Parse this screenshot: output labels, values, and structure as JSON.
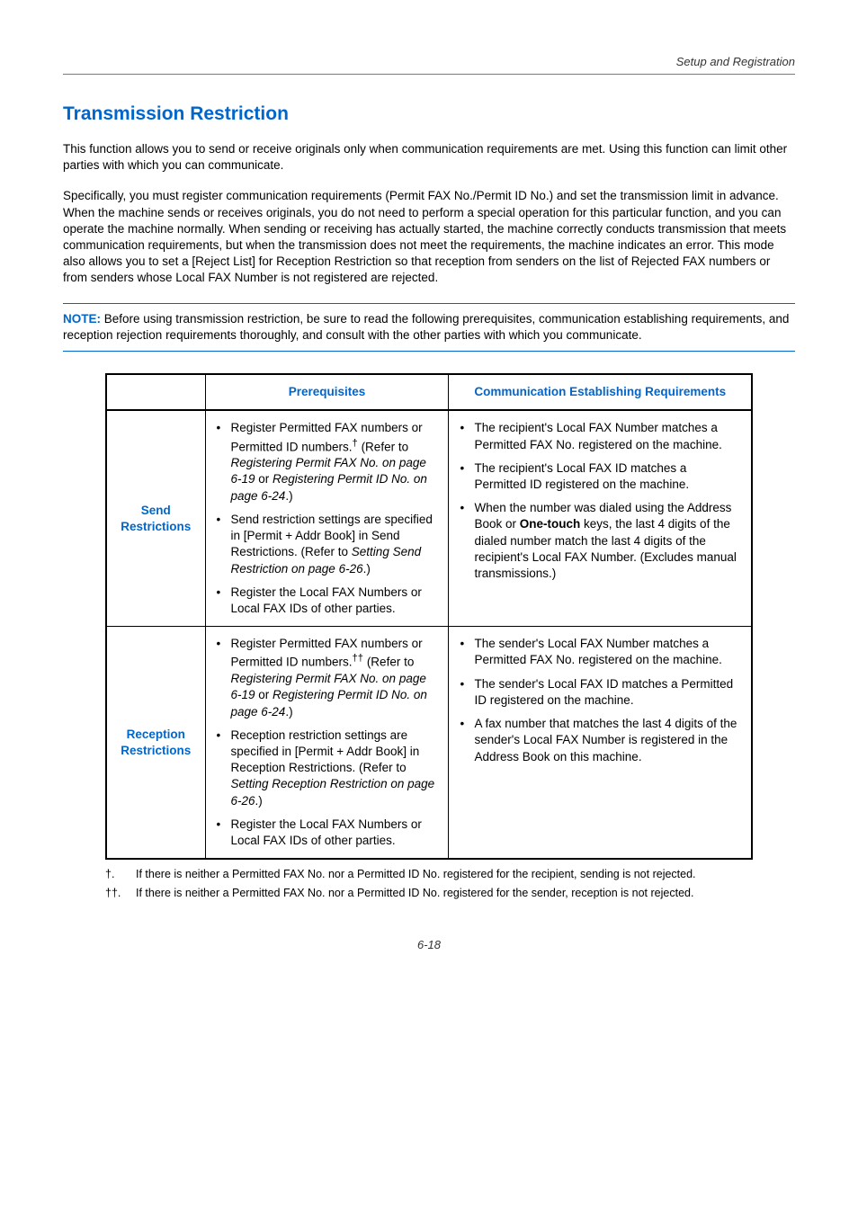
{
  "header": {
    "section": "Setup and Registration"
  },
  "title": "Transmission Restriction",
  "intro1": "This function allows you to send or receive originals only when communication requirements are met. Using this function can limit other parties with which you can communicate.",
  "intro2": "Specifically, you must register communication requirements (Permit FAX No./Permit ID No.) and set the transmission limit in advance. When the machine sends or receives originals, you do not need to perform a special operation for this particular function, and you can operate the machine normally. When sending or receiving has actually started, the machine correctly conducts transmission that meets communication requirements, but when the transmission does not meet the requirements, the machine indicates an error. This mode also allows you to set a [Reject List] for Reception Restriction so that reception from senders on the list of Rejected FAX numbers or from senders whose Local FAX Number is not registered are rejected.",
  "note": {
    "label": "NOTE:",
    "text": " Before using transmission restriction, be sure to read the following prerequisites, communication establishing requirements, and reception rejection requirements thoroughly, and consult with the other parties with which you communicate."
  },
  "table": {
    "headers": {
      "col2": "Prerequisites",
      "col3": "Communication Establishing Requirements"
    },
    "rows": {
      "send": {
        "label": "Send Restrictions",
        "prereq": {
          "b1a": "Register Permitted FAX numbers or Permitted ID numbers.",
          "b1sup": "†",
          "b1b": " (Refer to ",
          "b1c": "Registering Permit FAX No. on page 6-19",
          "b1d": " or ",
          "b1e": "Registering Permit ID No. on page 6-24",
          "b1f": ".)",
          "b2a": "Send restriction settings are specified in [Permit + Addr Book] in Send Restrictions. (Refer to ",
          "b2b": "Setting Send Restriction on page 6-26",
          "b2c": ".)",
          "b3": "Register the Local FAX Numbers or Local FAX IDs of other parties."
        },
        "comm": {
          "b1": "The recipient's Local FAX Number matches a Permitted FAX No. registered on the machine.",
          "b2": "The recipient's Local FAX ID matches a Permitted ID registered on the machine.",
          "b3a": "When the number was dialed using the Address Book or ",
          "b3b": "One-touch",
          "b3c": " keys, the last 4 digits of the dialed number match the last 4 digits of the recipient's Local FAX Number. (Excludes manual transmissions.)"
        }
      },
      "recv": {
        "label": "Reception Restrictions",
        "prereq": {
          "b1a": "Register Permitted FAX numbers or Permitted ID numbers.",
          "b1sup": "††",
          "b1b": " (Refer to ",
          "b1c": "Registering Permit FAX No. on page 6-19",
          "b1d": " or ",
          "b1e": "Registering Permit ID No. on page 6-24",
          "b1f": ".)",
          "b2a": "Reception restriction settings are specified in [Permit + Addr Book] in Reception Restrictions. (Refer to ",
          "b2b": "Setting Reception Restriction on page 6-26",
          "b2c": ".)",
          "b3": "Register the Local FAX Numbers or Local FAX IDs of other parties."
        },
        "comm": {
          "b1": "The sender's Local FAX Number matches a Permitted FAX No. registered on the machine.",
          "b2": "The sender's Local FAX ID matches a Permitted ID registered on the machine.",
          "b3": "A fax number that matches the last 4 digits of the sender's Local FAX Number is registered in the Address Book on this machine."
        }
      }
    }
  },
  "footnotes": {
    "f1sym": "†.",
    "f1": "If there is neither a Permitted FAX No. nor a Permitted ID No. registered for the recipient, sending is not rejected.",
    "f2sym": "††.",
    "f2": "If there is neither a Permitted FAX No. nor a Permitted ID No. registered for the sender, reception is not rejected."
  },
  "pagenum": "6-18"
}
